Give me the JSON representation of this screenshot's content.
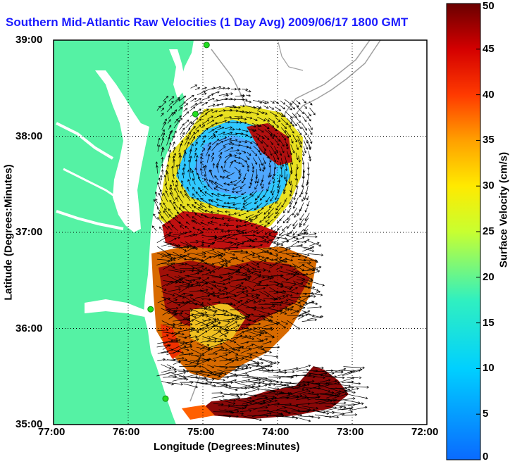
{
  "title": "Southern Mid-Atlantic Raw Velocities (1 Day Avg) 2009/06/17 1800 GMT",
  "axes": {
    "xlabel": "Longitude (Degrees:Minutes)",
    "ylabel": "Latitude (Degrees:Minutes)",
    "xticks": [
      "77:00",
      "76:00",
      "75:00",
      "74:00",
      "73:00",
      "72:00"
    ],
    "yticks": [
      "39:00",
      "38:00",
      "37:00",
      "36:00",
      "35:00"
    ]
  },
  "colorbar": {
    "label": "Surface Velocity (cm/s)",
    "ticks": [
      "0",
      "5",
      "10",
      "15",
      "20",
      "25",
      "30",
      "35",
      "40",
      "45",
      "50"
    ],
    "range": [
      0,
      50
    ]
  },
  "colors": {
    "land": "#55f2a4",
    "bathymetry": "#a0a0a0",
    "title": "#1a1aff"
  },
  "map": {
    "lon_range": [
      -77,
      -72
    ],
    "lat_range": [
      35,
      39
    ],
    "grid": true,
    "stations": [
      {
        "lon": -74.95,
        "lat": 38.95
      },
      {
        "lon": -75.1,
        "lat": 38.23
      },
      {
        "lon": -75.7,
        "lat": 36.2
      },
      {
        "lon": -75.5,
        "lat": 35.27
      }
    ]
  }
}
